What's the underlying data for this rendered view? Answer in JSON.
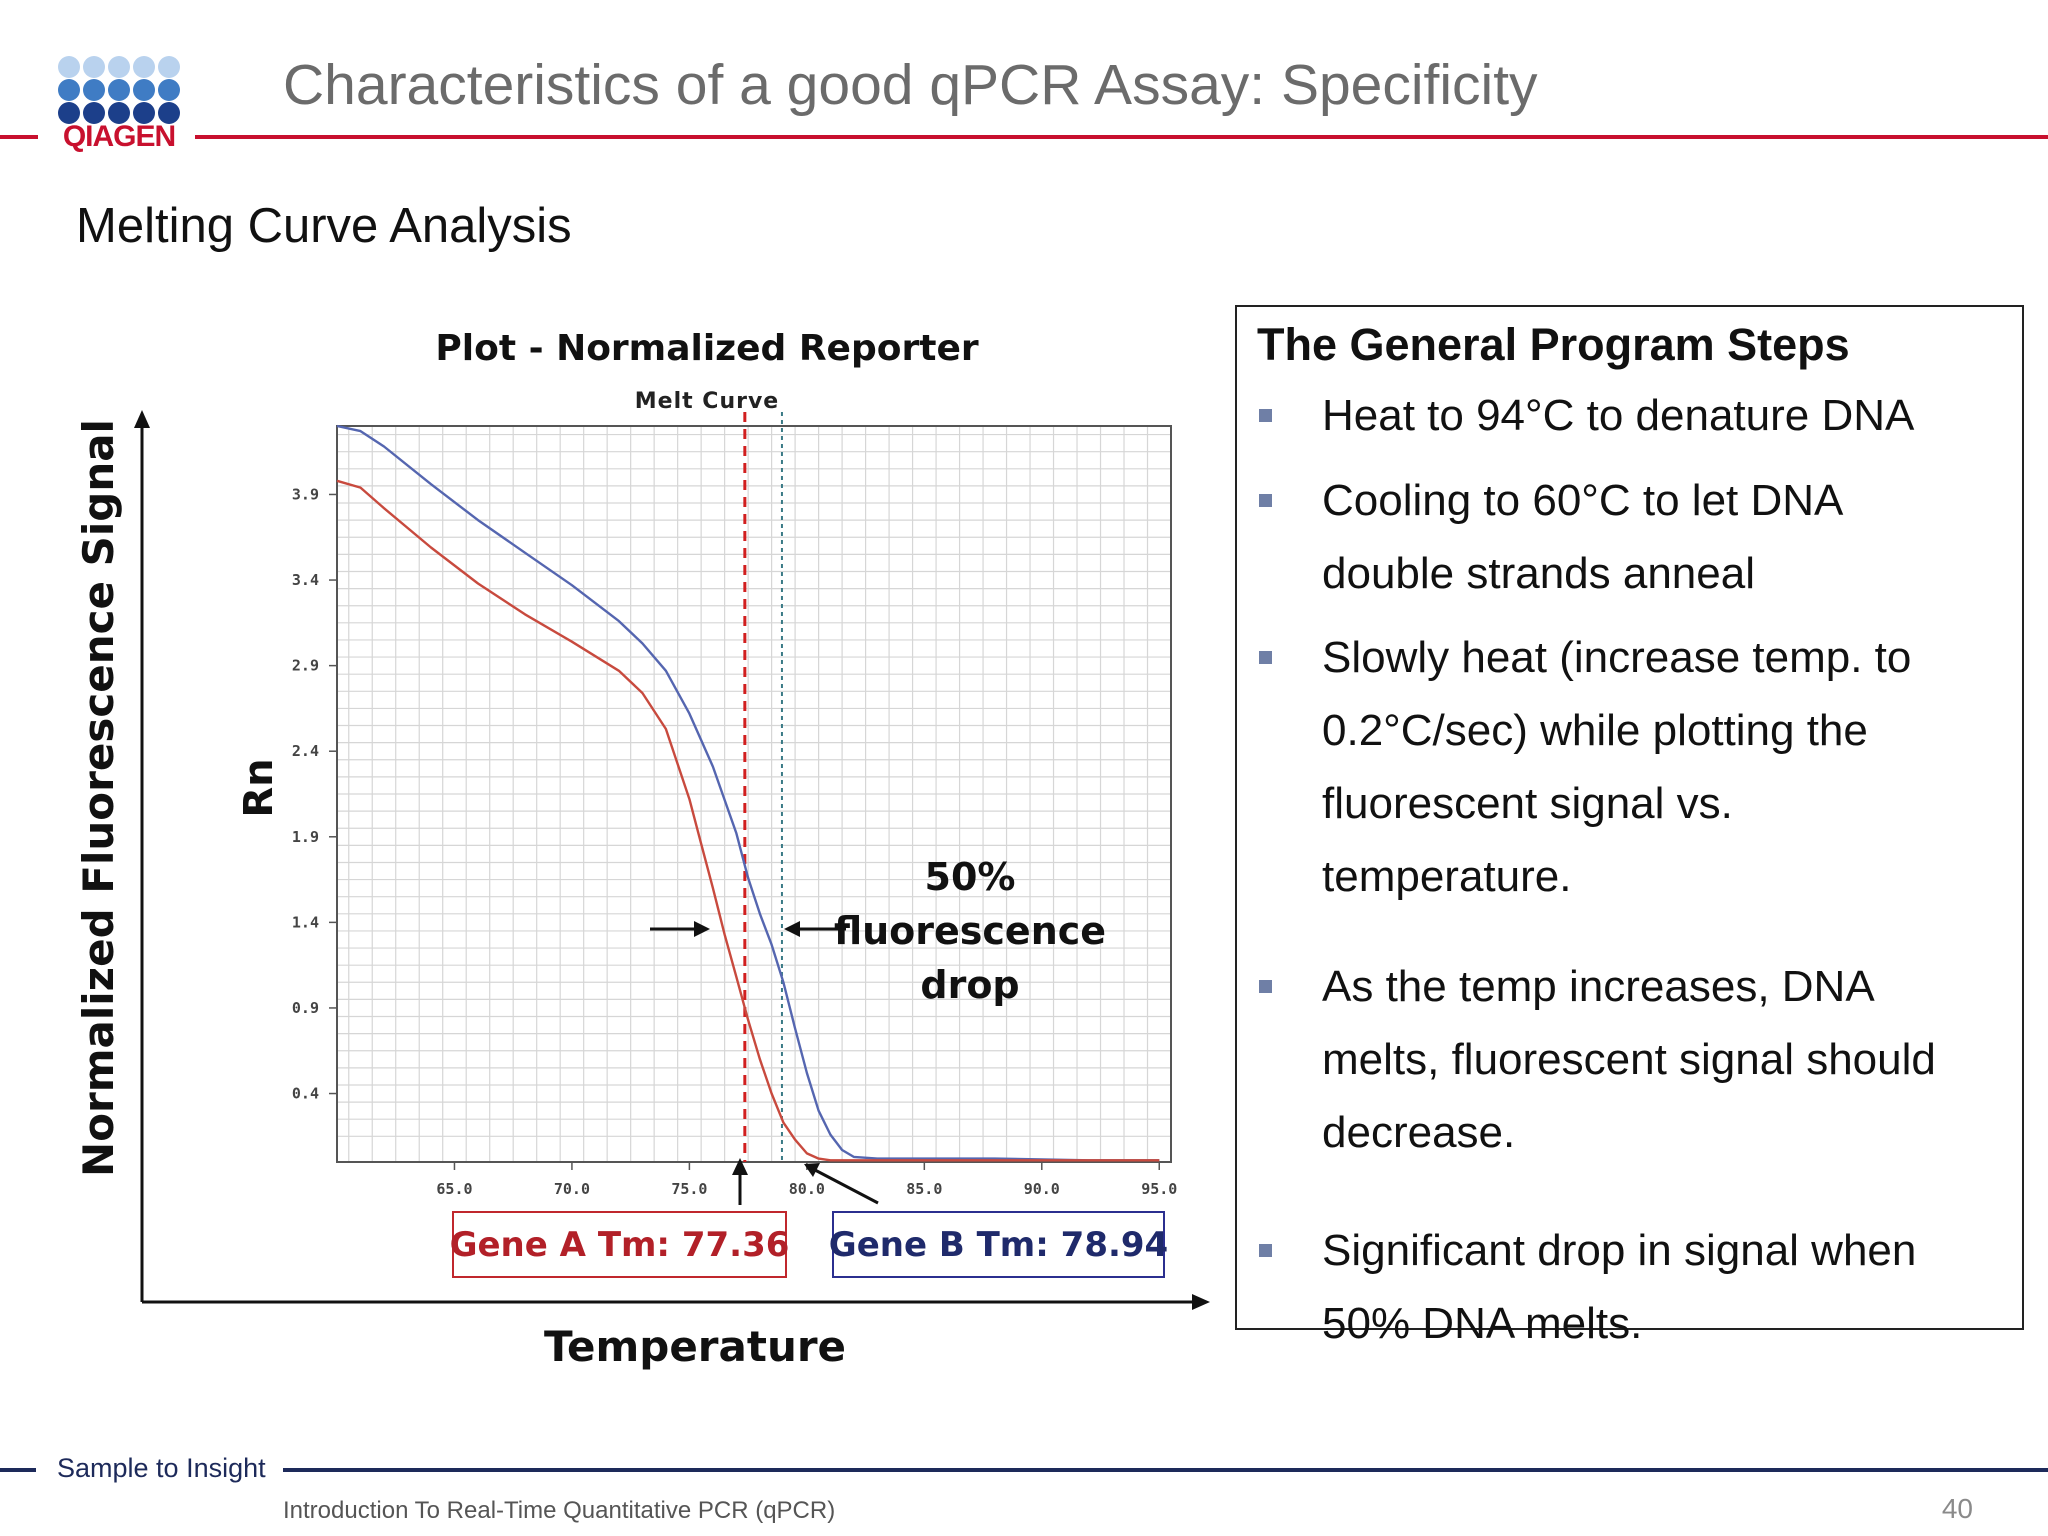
{
  "header": {
    "logo_text": "QIAGEN",
    "title": "Characteristics of a good qPCR Assay: Specificity",
    "subtitle": "Melting Curve Analysis"
  },
  "colors": {
    "brand_red": "#c8102e",
    "brand_blue": "#1d2a5a",
    "gene_a": "#c84a3e",
    "gene_b": "#5566b0"
  },
  "figure": {
    "plot_heading": "Plot - Normalized Reporter",
    "outer_y_label": "Normalized Fluorescence Signal",
    "outer_x_label": "Temperature",
    "fluorescence_label_line1": "50% fluorescence",
    "fluorescence_label_line2": "drop",
    "gene_a_tm": "Gene A Tm: 77.36",
    "gene_b_tm": "Gene B Tm: 78.94"
  },
  "chart_data": {
    "type": "line",
    "title": "Melt Curve",
    "xlabel": "",
    "ylabel": "Rn",
    "xlim": [
      60.0,
      95.5
    ],
    "ylim": [
      0.0,
      4.3
    ],
    "x_ticks": [
      "65.0",
      "70.0",
      "75.0",
      "80.0",
      "85.0",
      "90.0",
      "95.0"
    ],
    "y_ticks": [
      "0.4",
      "0.9",
      "1.4",
      "1.9",
      "2.4",
      "2.9",
      "3.4",
      "3.9"
    ],
    "grid": true,
    "vertical_markers": [
      77.36,
      78.94
    ],
    "series": [
      {
        "color": "#5566b0",
        "x": [
          60.0,
          61.0,
          62.0,
          64.0,
          66.0,
          68.0,
          70.0,
          72.0,
          73.0,
          74.0,
          75.0,
          76.0,
          77.0,
          77.5,
          78.0,
          78.5,
          79.0,
          79.5,
          80.0,
          80.5,
          81.0,
          81.5,
          82.0,
          83.0,
          85.0,
          88.0,
          92.0,
          95.0
        ],
        "values": [
          4.3,
          4.27,
          4.18,
          3.96,
          3.75,
          3.56,
          3.37,
          3.16,
          3.03,
          2.87,
          2.62,
          2.31,
          1.92,
          1.66,
          1.45,
          1.27,
          1.05,
          0.78,
          0.52,
          0.3,
          0.16,
          0.07,
          0.03,
          0.02,
          0.02,
          0.02,
          0.01,
          0.01
        ]
      },
      {
        "color": "#c84a3e",
        "x": [
          60.0,
          61.0,
          62.0,
          64.0,
          66.0,
          68.0,
          70.0,
          72.0,
          73.0,
          74.0,
          75.0,
          75.5,
          76.0,
          76.5,
          77.0,
          77.5,
          78.0,
          78.5,
          79.0,
          79.5,
          80.0,
          80.5,
          81.0,
          82.0,
          85.0,
          90.0,
          95.0
        ],
        "values": [
          3.98,
          3.94,
          3.82,
          3.59,
          3.38,
          3.2,
          3.04,
          2.87,
          2.74,
          2.53,
          2.12,
          1.86,
          1.6,
          1.33,
          1.08,
          0.83,
          0.6,
          0.4,
          0.23,
          0.13,
          0.05,
          0.02,
          0.01,
          0.01,
          0.01,
          0.01,
          0.01
        ]
      }
    ]
  },
  "panel": {
    "title": "The General Program Steps",
    "steps": [
      [
        "Heat to 94°C to denature DNA"
      ],
      [
        "Cooling to 60°C to let DNA",
        "double strands anneal"
      ],
      [
        "Slowly heat (increase temp. to",
        "0.2°C/sec) while plotting the",
        "fluorescent signal vs.",
        "temperature."
      ],
      [
        "As the temp increases, DNA",
        "melts, fluorescent signal should",
        "decrease."
      ],
      [
        "Significant drop in signal when",
        "50% DNA melts."
      ]
    ]
  },
  "footer": {
    "tagline": "Sample to Insight",
    "course": "Introduction To Real-Time Quantitative PCR (qPCR)",
    "page": "40"
  }
}
